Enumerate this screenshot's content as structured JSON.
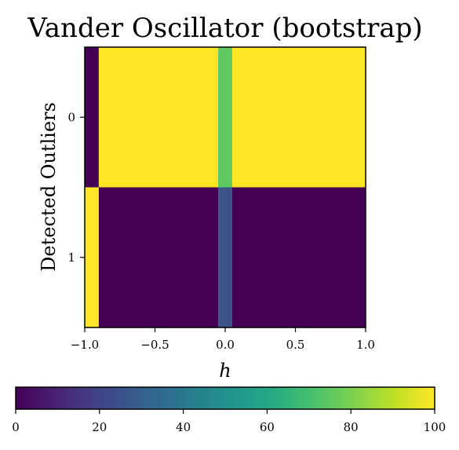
{
  "chart_data": {
    "type": "heatmap",
    "title": "Vander Oscillator (bootstrap)",
    "xlabel": "h",
    "ylabel": "Detected Outliers",
    "xlim": [
      -1.0,
      1.0
    ],
    "x_ticks": [
      "−1.0",
      "−0.5",
      "0.0",
      "0.5",
      "1.0"
    ],
    "x_tick_values": [
      -1.0,
      -0.5,
      0.0,
      0.5,
      1.0
    ],
    "y_categories": [
      "0",
      "1"
    ],
    "colormap": "viridis",
    "color_range": [
      0,
      100
    ],
    "colorbar_ticks": [
      "0",
      "20",
      "40",
      "60",
      "80",
      "100"
    ],
    "colorbar_tick_values": [
      0,
      20,
      40,
      60,
      80,
      100
    ],
    "cells": [
      {
        "x_start": -1.0,
        "x_end": -0.9,
        "row": 0,
        "value": 0
      },
      {
        "x_start": -1.0,
        "x_end": -0.9,
        "row": 1,
        "value": 100
      },
      {
        "x_start": -0.9,
        "x_end": -0.05,
        "row": 0,
        "value": 100
      },
      {
        "x_start": -0.9,
        "x_end": -0.05,
        "row": 1,
        "value": 0
      },
      {
        "x_start": -0.05,
        "x_end": 0.05,
        "row": 0,
        "value": 75
      },
      {
        "x_start": -0.05,
        "x_end": 0.05,
        "row": 1,
        "value": 25
      },
      {
        "x_start": 0.05,
        "x_end": 1.0,
        "row": 0,
        "value": 100
      },
      {
        "x_start": 0.05,
        "x_end": 1.0,
        "row": 1,
        "value": 0
      }
    ]
  }
}
